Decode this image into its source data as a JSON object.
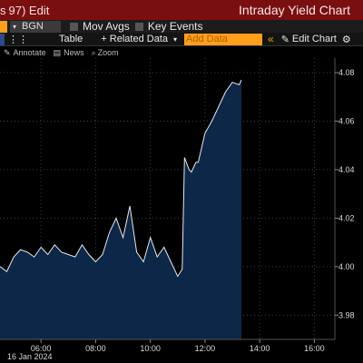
{
  "title_bar": {
    "left_fragment": "s",
    "edit_menu": "97) Edit",
    "window_title": "Intraday Yield Chart"
  },
  "row2": {
    "source_value": "BGN",
    "options": [
      {
        "label": "Mov Avgs"
      },
      {
        "label": "Key Events"
      }
    ]
  },
  "toolbar": {
    "table_label": "Table",
    "related_data_label": "+ Related Data",
    "add_data_placeholder": "Add Data",
    "chevron": "«",
    "edit_chart_label": "Edit Chart",
    "gear": "⚙"
  },
  "annotations_row": {
    "annotate_label": "Annotate",
    "news_label": "News",
    "zoom_label": "Zoom"
  },
  "colors": {
    "title_bar": "#7a0f10",
    "accent_orange": "#ff9f1a",
    "area_fill": "#0d2748",
    "line": "#e8e8e8",
    "grid": "#3c3c3c"
  },
  "chart_data": {
    "type": "area",
    "date_label": "16 Jan 2024",
    "x_ticks": [
      "06:00",
      "08:00",
      "10:00",
      "12:00",
      "14:00",
      "16:00"
    ],
    "y_ticks": [
      "3.98",
      "4.00",
      "4.02",
      "4.04",
      "4.06",
      "4.08"
    ],
    "ylim": [
      3.97,
      4.086
    ],
    "xlim": [
      "04:30",
      "16:45"
    ],
    "y_axis_side": "right",
    "grid": true,
    "series": [
      {
        "x": [
          "04:30",
          "04:45",
          "05:00",
          "05:15",
          "05:30",
          "05:45",
          "06:00",
          "06:15",
          "06:30",
          "06:45",
          "07:00",
          "07:15",
          "07:30",
          "07:45",
          "08:00",
          "08:15",
          "08:30",
          "08:45",
          "09:00",
          "09:15",
          "09:30",
          "09:45",
          "10:00",
          "10:15",
          "10:30",
          "10:45",
          "11:00",
          "11:10",
          "11:15",
          "11:25",
          "11:30",
          "11:40",
          "11:45",
          "12:00",
          "12:15",
          "12:30",
          "12:45",
          "13:00",
          "13:15",
          "13:20"
        ],
        "y": [
          4.0,
          3.998,
          4.004,
          4.007,
          4.006,
          4.004,
          4.008,
          4.005,
          4.009,
          4.006,
          4.005,
          4.004,
          4.009,
          4.005,
          4.002,
          4.005,
          4.014,
          4.02,
          4.012,
          4.025,
          4.006,
          4.002,
          4.012,
          4.004,
          4.008,
          4.002,
          3.996,
          3.999,
          4.045,
          4.04,
          4.039,
          4.043,
          4.043,
          4.055,
          4.06,
          4.066,
          4.072,
          4.076,
          4.075,
          4.077
        ]
      }
    ]
  }
}
